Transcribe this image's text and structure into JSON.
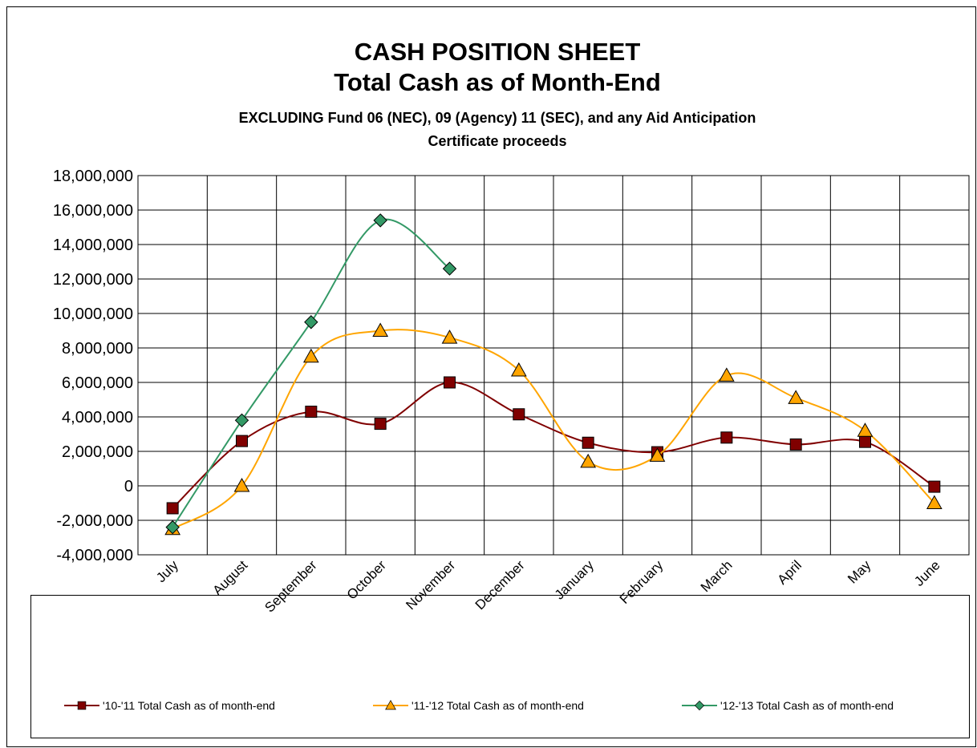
{
  "chart_data": {
    "type": "line",
    "title": [
      "CASH POSITION SHEET",
      "Total Cash as of Month-End"
    ],
    "subtitle": [
      "EXCLUDING Fund 06 (NEC), 09 (Agency) 11 (SEC), and any Aid Anticipation",
      "Certificate proceeds"
    ],
    "categories": [
      "July",
      "August",
      "September",
      "October",
      "November",
      "December",
      "January",
      "February",
      "March",
      "April",
      "May",
      "June"
    ],
    "series": [
      {
        "name": "'10-'11 Total Cash as of month-end",
        "color": "#800000",
        "marker": "square",
        "values": [
          -1300000,
          2600000,
          4300000,
          3600000,
          6000000,
          4150000,
          2500000,
          1950000,
          2800000,
          2400000,
          2550000,
          -50000
        ]
      },
      {
        "name": "'11-'12 Total Cash as of month-end",
        "color": "#ffa500",
        "marker": "triangle",
        "values": [
          -2500000,
          0,
          7500000,
          9000000,
          8600000,
          6700000,
          1400000,
          1750000,
          6400000,
          5100000,
          3200000,
          -1000000
        ]
      },
      {
        "name": "'12-'13 Total Cash as of month-end",
        "color": "#339966",
        "marker": "diamond",
        "values": [
          -2400000,
          3800000,
          9500000,
          15400000,
          12600000,
          null,
          null,
          null,
          null,
          null,
          null,
          null
        ]
      }
    ],
    "ylim": [
      -4000000,
      18000000
    ],
    "yticks": [
      {
        "value": -4000000,
        "label": "-4,000,000"
      },
      {
        "value": -2000000,
        "label": "-2,000,000"
      },
      0,
      {
        "value": 2000000,
        "label": "2,000,000"
      },
      {
        "value": 4000000,
        "label": "4,000,000"
      },
      {
        "value": 6000000,
        "label": "6,000,000"
      },
      {
        "value": 8000000,
        "label": "8,000,000"
      },
      {
        "value": 10000000,
        "label": "10,000,000"
      },
      {
        "value": 12000000,
        "label": "12,000,000"
      },
      {
        "value": 14000000,
        "label": "14,000,000"
      },
      {
        "value": 16000000,
        "label": "16,000,000"
      },
      {
        "value": 18000000,
        "label": "18,000,000"
      }
    ],
    "grid": true,
    "smooth": true,
    "legend": "bottom"
  }
}
